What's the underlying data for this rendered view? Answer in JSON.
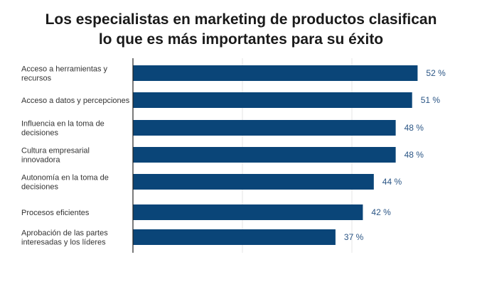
{
  "chart_data": {
    "type": "bar",
    "orientation": "horizontal",
    "title": "Los especialistas en marketing de productos clasifican lo que es más importantes para su éxito",
    "title_lines": [
      "Los especialistas en marketing de productos clasifican",
      "lo que es más importantes para su éxito"
    ],
    "categories": [
      [
        "Acceso a herramientas y",
        "recursos"
      ],
      [
        "Acceso a datos y percepciones"
      ],
      [
        "Influencia en la toma de",
        "decisiones"
      ],
      [
        "Cultura empresarial",
        "innovadora"
      ],
      [
        "Autonomía en la toma de",
        "decisiones"
      ],
      [
        "Procesos eficientes"
      ],
      [
        "Aprobación de las partes",
        "interesadas y los líderes"
      ]
    ],
    "values": [
      52,
      51,
      48,
      48,
      44,
      42,
      37
    ],
    "value_labels": [
      "52 %",
      "51 %",
      "48 %",
      "48 %",
      "44 %",
      "42 %",
      "37 %"
    ],
    "xlim": [
      0,
      60
    ],
    "gridlines": [
      20,
      40
    ],
    "bar_color": "#0a4578",
    "label_color": "#2a5585"
  }
}
